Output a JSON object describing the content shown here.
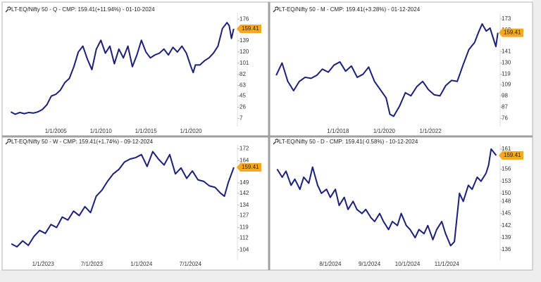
{
  "chart_data": [
    {
      "type": "line",
      "title": "LT-EQ/Nifty 50 - Q - CMP: 159.41(+11.94%) - 01-10-2024",
      "color": "#1b1f7a",
      "x": [
        "2000-01-01",
        "2000-07-01",
        "2001-01-01",
        "2001-07-01",
        "2002-01-01",
        "2002-07-01",
        "2003-01-01",
        "2003-07-01",
        "2004-01-01",
        "2004-07-01",
        "2005-01-01",
        "2005-07-01",
        "2006-01-01",
        "2006-07-01",
        "2007-01-01",
        "2007-07-01",
        "2008-01-01",
        "2008-07-01",
        "2009-01-01",
        "2009-07-01",
        "2010-01-01",
        "2010-07-01",
        "2011-01-01",
        "2011-07-01",
        "2012-01-01",
        "2012-07-01",
        "2013-01-01",
        "2013-07-01",
        "2014-01-01",
        "2014-07-01",
        "2015-01-01",
        "2015-07-01",
        "2016-01-01",
        "2016-07-01",
        "2017-01-01",
        "2017-07-01",
        "2018-01-01",
        "2018-07-01",
        "2019-01-01",
        "2019-07-01",
        "2020-01-01",
        "2020-04-01",
        "2020-07-01",
        "2021-01-01",
        "2021-07-01",
        "2022-01-01",
        "2022-07-01",
        "2023-01-01",
        "2023-07-01",
        "2024-01-01",
        "2024-04-01",
        "2024-07-01",
        "2024-10-01"
      ],
      "values": [
        18,
        14,
        17,
        15,
        17,
        16,
        18,
        22,
        30,
        45,
        48,
        55,
        68,
        75,
        95,
        120,
        130,
        108,
        90,
        125,
        140,
        118,
        130,
        100,
        125,
        110,
        130,
        95,
        115,
        140,
        120,
        110,
        115,
        118,
        125,
        115,
        128,
        120,
        130,
        118,
        95,
        85,
        98,
        98,
        105,
        110,
        118,
        130,
        160,
        170,
        165,
        143,
        159.41
      ],
      "xlim": [
        "1999-08-01",
        "2025-01-01"
      ],
      "xticks": [
        {
          "value": "2005-01-01",
          "label": "1/1/2005"
        },
        {
          "value": "2010-01-01",
          "label": "1/1/2010"
        },
        {
          "value": "2015-01-01",
          "label": "1/1/2015"
        },
        {
          "value": "2020-01-01",
          "label": "1/1/2020"
        }
      ],
      "ylim": [
        -7,
        187
      ],
      "yticks": [
        176,
        139,
        120,
        101,
        82,
        63,
        45,
        26,
        7
      ],
      "marker": {
        "value": 159.41,
        "label": "159.41"
      }
    },
    {
      "type": "line",
      "title": "LT-EQ/Nifty 50 - M - CMP: 159.41(+3.28%) - 01-12-2024",
      "color": "#1b1f7a",
      "x": [
        "2015-04-30",
        "2015-07-31",
        "2015-10-30",
        "2016-01-29",
        "2016-04-29",
        "2016-07-29",
        "2016-10-31",
        "2017-01-31",
        "2017-04-28",
        "2017-07-31",
        "2017-10-31",
        "2018-01-31",
        "2018-04-30",
        "2018-07-31",
        "2018-10-31",
        "2019-01-31",
        "2019-04-30",
        "2019-07-31",
        "2019-10-31",
        "2020-01-31",
        "2020-03-31",
        "2020-05-29",
        "2020-08-31",
        "2020-11-30",
        "2021-02-26",
        "2021-05-31",
        "2021-08-31",
        "2021-11-30",
        "2022-02-28",
        "2022-05-31",
        "2022-08-31",
        "2022-11-30",
        "2023-02-28",
        "2023-05-31",
        "2023-08-31",
        "2023-11-30",
        "2024-01-31",
        "2024-03-28",
        "2024-05-31",
        "2024-07-31",
        "2024-09-30",
        "2024-10-31",
        "2024-12-01"
      ],
      "values": [
        118,
        130,
        112,
        103,
        112,
        116,
        115,
        118,
        124,
        121,
        128,
        131,
        122,
        127,
        116,
        119,
        126,
        112,
        104,
        96,
        80,
        78,
        88,
        101,
        98,
        107,
        112,
        104,
        99,
        98,
        108,
        113,
        112,
        128,
        143,
        150,
        160,
        168,
        161,
        164,
        152,
        146,
        159.41
      ],
      "xlim": [
        "2015-03-15",
        "2024-12-15"
      ],
      "xticks": [
        {
          "value": "2018-01-01",
          "label": "1/1/2018"
        },
        {
          "value": "2020-01-01",
          "label": "1/1/2020"
        },
        {
          "value": "2022-01-01",
          "label": "1/1/2022"
        }
      ],
      "ylim": [
        68,
        179
      ],
      "yticks": [
        173,
        162,
        141,
        130,
        119,
        109,
        98,
        87,
        76
      ],
      "marker": {
        "value": 159.41,
        "label": "159.41"
      }
    },
    {
      "type": "line",
      "title": "LT-EQ/Nifty 50 - W - CMP: 159.41(+1.74%) - 09-12-2024",
      "color": "#1b1f7a",
      "x": [
        "2022-09-05",
        "2022-09-26",
        "2022-10-17",
        "2022-11-07",
        "2022-11-28",
        "2022-12-19",
        "2023-01-09",
        "2023-01-30",
        "2023-02-20",
        "2023-03-13",
        "2023-04-03",
        "2023-04-24",
        "2023-05-15",
        "2023-06-05",
        "2023-06-26",
        "2023-07-17",
        "2023-08-07",
        "2023-08-28",
        "2023-09-18",
        "2023-10-09",
        "2023-10-30",
        "2023-11-20",
        "2023-12-11",
        "2024-01-01",
        "2024-01-22",
        "2024-02-12",
        "2024-03-04",
        "2024-03-25",
        "2024-04-15",
        "2024-05-06",
        "2024-05-27",
        "2024-06-17",
        "2024-07-08",
        "2024-07-29",
        "2024-08-19",
        "2024-09-09",
        "2024-09-30",
        "2024-10-21",
        "2024-11-04",
        "2024-11-18",
        "2024-12-09"
      ],
      "values": [
        108,
        106,
        110,
        107,
        113,
        117,
        115,
        121,
        119,
        126,
        124,
        130,
        127,
        133,
        129,
        140,
        144,
        150,
        155,
        158,
        163,
        165,
        166,
        168,
        160,
        170,
        165,
        161,
        168,
        155,
        159,
        152,
        157,
        151,
        150,
        147,
        146,
        142,
        140,
        149,
        159.41
      ],
      "xlim": [
        "2022-08-20",
        "2024-12-17"
      ],
      "xticks": [
        {
          "value": "2023-01-01",
          "label": "1/1/2023"
        },
        {
          "value": "2023-07-01",
          "label": "7/1/2023"
        },
        {
          "value": "2024-01-01",
          "label": "1/1/2024"
        },
        {
          "value": "2024-07-01",
          "label": "7/1/2024"
        }
      ],
      "ylim": [
        97,
        175
      ],
      "yticks": [
        172,
        164,
        149,
        142,
        134,
        127,
        119,
        112,
        104
      ],
      "marker": {
        "value": 159.41,
        "label": "159.41"
      }
    },
    {
      "type": "line",
      "title": "LT-EQ/Nifty 50 - D - CMP: 159.41(-0.58%) - 10-12-2024",
      "color": "#1b1f7a",
      "x": [
        "2024-06-20",
        "2024-06-24",
        "2024-06-27",
        "2024-07-01",
        "2024-07-04",
        "2024-07-08",
        "2024-07-11",
        "2024-07-15",
        "2024-07-18",
        "2024-07-22",
        "2024-07-25",
        "2024-07-29",
        "2024-08-01",
        "2024-08-05",
        "2024-08-08",
        "2024-08-12",
        "2024-08-15",
        "2024-08-19",
        "2024-08-22",
        "2024-08-26",
        "2024-08-29",
        "2024-09-02",
        "2024-09-05",
        "2024-09-09",
        "2024-09-12",
        "2024-09-16",
        "2024-09-19",
        "2024-09-23",
        "2024-09-26",
        "2024-09-30",
        "2024-10-03",
        "2024-10-07",
        "2024-10-10",
        "2024-10-14",
        "2024-10-17",
        "2024-10-21",
        "2024-10-24",
        "2024-10-28",
        "2024-10-31",
        "2024-11-04",
        "2024-11-07",
        "2024-11-11",
        "2024-11-14",
        "2024-11-18",
        "2024-11-21",
        "2024-11-25",
        "2024-11-28",
        "2024-12-02",
        "2024-12-04",
        "2024-12-06",
        "2024-12-10"
      ],
      "values": [
        156,
        154,
        155.5,
        152,
        153.5,
        151,
        154,
        152.5,
        156.5,
        152,
        150,
        151,
        149,
        151,
        147,
        149,
        146,
        148,
        146,
        145,
        146,
        144,
        143,
        145,
        143,
        141,
        143,
        142,
        145,
        142,
        141,
        139,
        141,
        140,
        142,
        138.5,
        141,
        143,
        140,
        137,
        138,
        150,
        148,
        152,
        151,
        154,
        153,
        155,
        157,
        161,
        159.41
      ],
      "xlim": [
        "2024-06-17",
        "2024-12-12"
      ],
      "xticks": [
        {
          "value": "2024-08-01",
          "label": "8/1/2024"
        },
        {
          "value": "2024-09-01",
          "label": "9/1/2024"
        },
        {
          "value": "2024-10-01",
          "label": "10/1/2024"
        },
        {
          "value": "2024-11-01",
          "label": "11/1/2024"
        }
      ],
      "ylim": [
        133.4,
        162.2
      ],
      "yticks": [
        161,
        156,
        153,
        150,
        148,
        145,
        142,
        139,
        136
      ],
      "marker": {
        "value": 159.41,
        "label": "159.41"
      }
    }
  ]
}
